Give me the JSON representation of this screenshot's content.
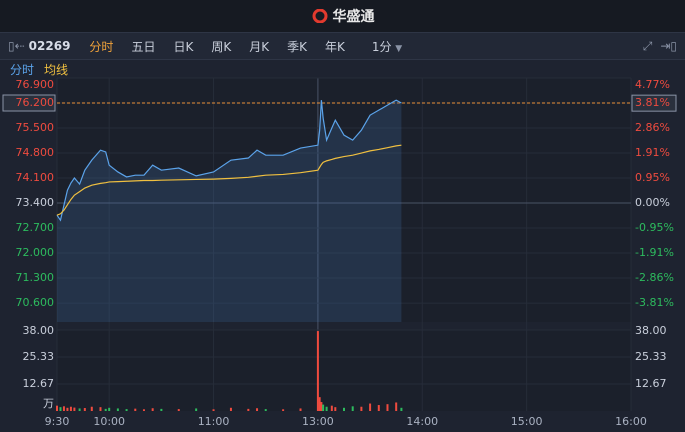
{
  "header": {
    "title": "华盛通"
  },
  "toolbar": {
    "symbol": "02269",
    "tabs": [
      "分时",
      "五日",
      "日K",
      "周K",
      "月K",
      "季K",
      "年K"
    ],
    "active_tab": 0,
    "interval": "1分"
  },
  "chart_data": [
    {
      "type": "line",
      "x": [
        0,
        2,
        4,
        6,
        8,
        10,
        13,
        16,
        20,
        25,
        28,
        30,
        35,
        40,
        45,
        50,
        55,
        60,
        70,
        80,
        90,
        100,
        110,
        115,
        120,
        130,
        140,
        150,
        151,
        152,
        153,
        155,
        158,
        160,
        165,
        170,
        175,
        180,
        185,
        190,
        195,
        198
      ],
      "series": [
        {
          "name": "分时",
          "color": "#5ba3ea",
          "values": [
            73.06,
            72.92,
            73.34,
            73.76,
            73.96,
            74.1,
            73.93,
            74.32,
            74.6,
            74.88,
            74.83,
            74.46,
            74.27,
            74.13,
            74.18,
            74.18,
            74.46,
            74.32,
            74.38,
            74.16,
            74.27,
            74.6,
            74.66,
            74.88,
            74.74,
            74.74,
            74.94,
            75.02,
            75.44,
            76.28,
            75.78,
            75.16,
            75.5,
            75.72,
            75.3,
            75.16,
            75.44,
            75.86,
            76.0,
            76.14,
            76.28,
            76.2
          ]
        },
        {
          "name": "均线",
          "color": "#f0c040",
          "values": [
            73.06,
            73.1,
            73.2,
            73.35,
            73.5,
            73.62,
            73.72,
            73.82,
            73.9,
            73.95,
            73.97,
            73.99,
            74.0,
            74.01,
            74.02,
            74.03,
            74.03,
            74.04,
            74.05,
            74.06,
            74.07,
            74.09,
            74.12,
            74.15,
            74.18,
            74.2,
            74.25,
            74.32,
            74.4,
            74.48,
            74.54,
            74.58,
            74.62,
            74.65,
            74.7,
            74.74,
            74.8,
            74.86,
            74.9,
            74.95,
            75.0,
            75.02
          ]
        }
      ],
      "xlim": [
        0,
        330
      ],
      "ylim": [
        70.07,
        76.9
      ],
      "yticks": [
        {
          "value": 76.9,
          "label": "76.900"
        },
        {
          "value": 76.2,
          "label": "76.200"
        },
        {
          "value": 75.5,
          "label": "75.500"
        },
        {
          "value": 74.8,
          "label": "74.800"
        },
        {
          "value": 74.1,
          "label": "74.100"
        },
        {
          "value": 73.4,
          "label": "73.400"
        },
        {
          "value": 72.7,
          "label": "72.700"
        },
        {
          "value": 72.0,
          "label": "72.000"
        },
        {
          "value": 71.3,
          "label": "71.300"
        },
        {
          "value": 70.6,
          "label": "70.600"
        }
      ],
      "y2lim": [
        -4.54,
        4.77
      ],
      "y2ticks": [
        {
          "value": 4.77,
          "label": "4.77%"
        },
        {
          "value": 3.81,
          "label": "3.81%"
        },
        {
          "value": 2.86,
          "label": "2.86%"
        },
        {
          "value": 1.91,
          "label": "1.91%"
        },
        {
          "value": 0.95,
          "label": "0.95%"
        },
        {
          "value": 0.0,
          "label": "0.00%"
        },
        {
          "value": -0.95,
          "label": "-0.95%"
        },
        {
          "value": -1.91,
          "label": "-1.91%"
        },
        {
          "value": -2.86,
          "label": "-2.86%"
        },
        {
          "value": -3.81,
          "label": "-3.81%"
        }
      ],
      "up_color": "#ef4b3f",
      "down_color": "#2dbb5e",
      "grid": true
    },
    {
      "type": "bar",
      "y_label": "万",
      "x": [
        0,
        2,
        4,
        6,
        8,
        10,
        13,
        16,
        20,
        25,
        28,
        30,
        35,
        40,
        45,
        50,
        55,
        60,
        70,
        80,
        90,
        100,
        110,
        115,
        120,
        130,
        140,
        150,
        151,
        152,
        153,
        155,
        158,
        160,
        165,
        170,
        175,
        180,
        185,
        190,
        195,
        198
      ],
      "values": [
        2.5,
        1.8,
        2.2,
        1.5,
        2.0,
        1.6,
        1.2,
        1.4,
        2.0,
        1.8,
        1.0,
        1.5,
        1.2,
        0.9,
        1.1,
        0.8,
        1.3,
        1.0,
        0.9,
        1.2,
        0.8,
        1.5,
        1.0,
        1.3,
        0.9,
        0.8,
        1.2,
        37.5,
        6.5,
        4.2,
        3.0,
        2.0,
        2.5,
        1.8,
        1.5,
        2.2,
        2.0,
        3.5,
        2.8,
        3.2,
        4.0,
        1.5
      ],
      "xlim": [
        0,
        330
      ],
      "xticks": [
        {
          "value": 0,
          "label": "9:30"
        },
        {
          "value": 30,
          "label": "10:00"
        },
        {
          "value": 90,
          "label": "11:00"
        },
        {
          "value": 150,
          "label": "13:00"
        },
        {
          "value": 210,
          "label": "14:00"
        },
        {
          "value": 270,
          "label": "15:00"
        },
        {
          "value": 330,
          "label": "16:00"
        }
      ],
      "ylim": [
        0,
        38
      ],
      "yticks": [
        {
          "value": 38,
          "label": "38.00"
        },
        {
          "value": 25.33,
          "label": "25.33"
        },
        {
          "value": 12.67,
          "label": "12.67"
        }
      ],
      "up_color": "#ef4b3f",
      "down_color": "#2dbb5e"
    }
  ]
}
